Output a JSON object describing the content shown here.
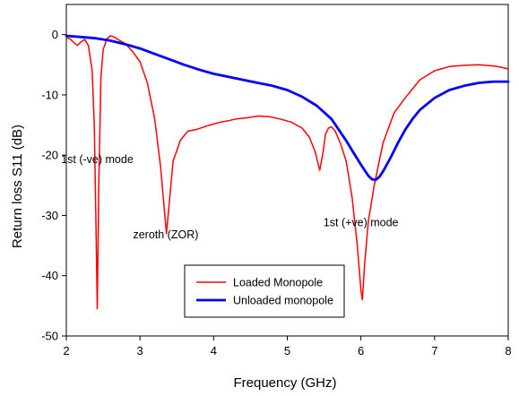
{
  "chart_data": {
    "type": "line",
    "xlabel": "Frequency (GHz)",
    "ylabel": "Return loss S11 (dB)",
    "xlim": [
      2,
      8
    ],
    "ylim": [
      -50,
      5
    ],
    "xticks": [
      2,
      3,
      4,
      5,
      6,
      7,
      8
    ],
    "yticks": [
      0,
      -10,
      -20,
      -30,
      -40,
      -50
    ],
    "grid": false,
    "legend_position": "bottom-center",
    "annotations": [
      {
        "text": "1st (-ve) mode",
        "x": 2.42,
        "y": -21.3
      },
      {
        "text": "zeroth (ZOR)",
        "x": 3.35,
        "y": -33.8
      },
      {
        "text": "1st (+ve) mode",
        "x": 6.0,
        "y": -31.8
      }
    ],
    "series": [
      {
        "name": "Loaded Monopole",
        "color": "#ff0000",
        "x": [
          2.0,
          2.05,
          2.1,
          2.15,
          2.2,
          2.25,
          2.3,
          2.35,
          2.38,
          2.4,
          2.42,
          2.44,
          2.47,
          2.5,
          2.55,
          2.6,
          2.65,
          2.7,
          2.8,
          2.9,
          3.0,
          3.1,
          3.2,
          3.28,
          3.33,
          3.36,
          3.39,
          3.45,
          3.55,
          3.65,
          3.75,
          3.85,
          3.95,
          4.1,
          4.2,
          4.3,
          4.45,
          4.6,
          4.75,
          4.9,
          5.05,
          5.2,
          5.3,
          5.38,
          5.44,
          5.48,
          5.52,
          5.56,
          5.6,
          5.65,
          5.72,
          5.8,
          5.88,
          5.95,
          6.0,
          6.02,
          6.05,
          6.1,
          6.18,
          6.3,
          6.45,
          6.6,
          6.8,
          7.0,
          7.2,
          7.4,
          7.6,
          7.8,
          7.9,
          8.0
        ],
        "values": [
          -0.5,
          -0.7,
          -1.3,
          -1.8,
          -1.2,
          -0.8,
          -1.8,
          -6.0,
          -15.0,
          -30.0,
          -45.5,
          -25.0,
          -7.0,
          -2.5,
          -0.7,
          -0.2,
          -0.4,
          -0.8,
          -1.5,
          -2.8,
          -4.5,
          -8.0,
          -14.0,
          -22.0,
          -29.0,
          -33.0,
          -29.0,
          -21.0,
          -17.5,
          -16.0,
          -15.8,
          -15.4,
          -15.0,
          -14.5,
          -14.3,
          -14.0,
          -13.8,
          -13.5,
          -13.6,
          -14.0,
          -14.5,
          -15.5,
          -17.0,
          -19.5,
          -22.5,
          -20.0,
          -16.5,
          -15.5,
          -15.3,
          -16.0,
          -18.0,
          -21.0,
          -27.0,
          -35.0,
          -42.5,
          -44.0,
          -38.0,
          -31.0,
          -25.0,
          -18.0,
          -13.0,
          -10.5,
          -7.5,
          -6.0,
          -5.3,
          -5.1,
          -5.0,
          -5.2,
          -5.4,
          -5.7
        ]
      },
      {
        "name": "Unloaded monopole",
        "color": "#0000ff",
        "x": [
          2.0,
          2.2,
          2.4,
          2.6,
          2.8,
          3.0,
          3.2,
          3.4,
          3.6,
          3.8,
          4.0,
          4.2,
          4.4,
          4.6,
          4.8,
          5.0,
          5.2,
          5.4,
          5.6,
          5.7,
          5.8,
          5.9,
          6.0,
          6.1,
          6.15,
          6.2,
          6.25,
          6.3,
          6.4,
          6.5,
          6.6,
          6.7,
          6.8,
          7.0,
          7.2,
          7.4,
          7.6,
          7.8,
          8.0
        ],
        "values": [
          -0.2,
          -0.4,
          -0.6,
          -1.0,
          -1.6,
          -2.3,
          -3.2,
          -4.1,
          -5.0,
          -5.8,
          -6.5,
          -7.0,
          -7.5,
          -8.0,
          -8.5,
          -9.2,
          -10.3,
          -11.8,
          -14.0,
          -15.8,
          -17.6,
          -19.6,
          -21.6,
          -23.4,
          -24.0,
          -24.1,
          -23.6,
          -22.7,
          -20.5,
          -18.0,
          -15.8,
          -14.0,
          -12.5,
          -10.5,
          -9.2,
          -8.5,
          -8.0,
          -7.8,
          -7.8
        ]
      }
    ]
  }
}
